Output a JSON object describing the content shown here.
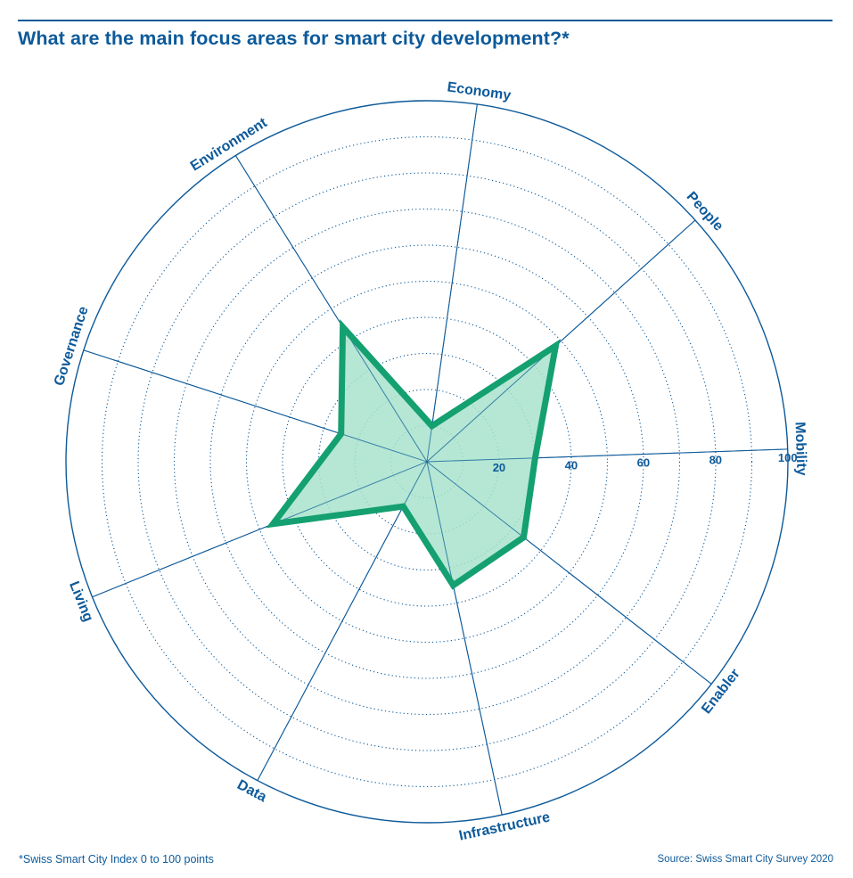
{
  "title": "What are the main focus areas for smart city development?*",
  "footnote": "*Swiss Smart City Index 0 to 100 points",
  "source": "Source: Swiss Smart City Survey 2020",
  "colors": {
    "text": "#0d5a9a",
    "series_line": "#14a070",
    "series_fill": "#a8e3cc"
  },
  "chart_data": {
    "type": "radar",
    "categories": [
      "Mobility",
      "People",
      "Economy",
      "Environment",
      "Governance",
      "Living",
      "Data",
      "Infrastructure",
      "Enabler"
    ],
    "series": [
      {
        "values": [
          30,
          48,
          10,
          44,
          25,
          46,
          14,
          35,
          34
        ]
      }
    ],
    "rlim": [
      0,
      100
    ],
    "radial_ticks": [
      20,
      40,
      60,
      80,
      100
    ],
    "grid": true
  }
}
